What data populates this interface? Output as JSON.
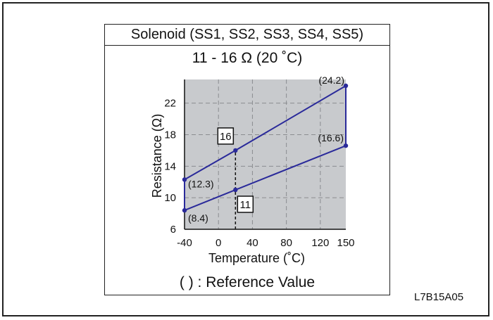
{
  "header": {
    "title": "Solenoid (SS1, SS2, SS3, SS4, SS5)"
  },
  "spec": {
    "text": "11 - 16 Ω (20 ˚C)"
  },
  "footer": {
    "note": "( ) : Reference Value"
  },
  "figure_code": "L7B15A05",
  "colors": {
    "plot_bg": "#c8cacd",
    "line": "#2a2a9a",
    "grid": "#8a8c90",
    "frame": "#222222"
  },
  "chart_data": {
    "type": "line",
    "title": "",
    "xlabel": "Temperature (˚C)",
    "ylabel": "Resistance (Ω)",
    "xlim": [
      -40,
      150
    ],
    "ylim": [
      6,
      25
    ],
    "x_ticks": [
      -40,
      0,
      40,
      80,
      120,
      150
    ],
    "y_ticks": [
      6,
      10,
      14,
      18,
      22
    ],
    "grid": true,
    "series": [
      {
        "x": [
          -40,
          20,
          150
        ],
        "y": [
          12.3,
          16,
          24.2
        ]
      },
      {
        "x": [
          -40,
          20,
          150
        ],
        "y": [
          8.4,
          11,
          16.6
        ]
      }
    ],
    "range_lines": [
      {
        "x": -40,
        "y": [
          8.4,
          12.3
        ]
      },
      {
        "x": 150,
        "y": [
          16.6,
          24.2
        ]
      }
    ],
    "reference_line": {
      "x": 20,
      "y": [
        6,
        16
      ],
      "style": "dashed"
    },
    "point_labels": [
      {
        "x": -40,
        "y": 12.3,
        "text": "(12.3)"
      },
      {
        "x": -40,
        "y": 8.4,
        "text": "(8.4)"
      },
      {
        "x": 150,
        "y": 24.2,
        "text": "(24.2)"
      },
      {
        "x": 150,
        "y": 16.6,
        "text": "(16.6)"
      }
    ],
    "boxed_labels": [
      {
        "x": 20,
        "y": 16,
        "text": "16"
      },
      {
        "x": 20,
        "y": 11,
        "text": "11"
      }
    ]
  }
}
